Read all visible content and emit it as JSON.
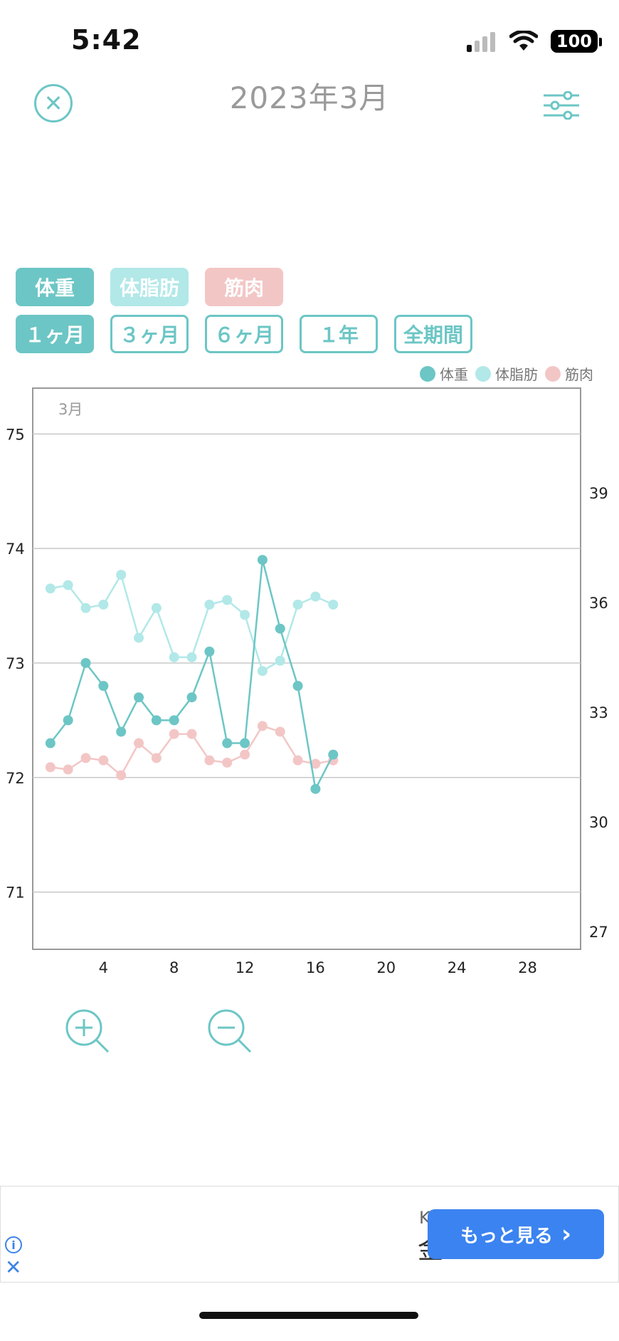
{
  "status": {
    "time": "5:42",
    "battery": "100"
  },
  "nav": {
    "title": "2023年3月",
    "close_icon": "close-circle-icon",
    "filter_icon": "sliders-icon"
  },
  "metric_tabs": [
    {
      "label": "体重",
      "state": "active",
      "color": "#6cc6c5"
    },
    {
      "label": "体脂肪",
      "state": "inactive",
      "color": "#b2e8e8"
    },
    {
      "label": "筋肉",
      "state": "inactive",
      "color": "#f3c6c6"
    }
  ],
  "period_tabs": [
    {
      "label": "１ヶ月",
      "state": "active"
    },
    {
      "label": "３ヶ月",
      "state": "inactive"
    },
    {
      "label": "６ヶ月",
      "state": "inactive"
    },
    {
      "label": "１年",
      "state": "inactive"
    },
    {
      "label": "全期間",
      "state": "inactive"
    }
  ],
  "legend": [
    {
      "label": "体重",
      "color": "#6cc6c5"
    },
    {
      "label": "体脂肪",
      "color": "#b2e8e8"
    },
    {
      "label": "筋肉",
      "color": "#f3c6c6"
    }
  ],
  "chart_data": {
    "type": "line",
    "month_label": "3月",
    "x_ticks": [
      4,
      8,
      12,
      16,
      20,
      24,
      28
    ],
    "xlim": [
      0,
      31
    ],
    "left_axis": {
      "ticks": [
        71,
        72,
        73,
        74,
        75
      ],
      "ylim": [
        70.5,
        75.4
      ]
    },
    "right_axis": {
      "ticks": [
        27,
        30,
        33,
        36,
        39
      ]
    },
    "series": [
      {
        "name": "体重",
        "color": "#6cc6c5",
        "x": [
          1,
          2,
          3,
          4,
          5,
          6,
          7,
          8,
          9,
          10,
          11,
          12,
          13,
          14,
          15,
          16,
          17
        ],
        "y": [
          72.3,
          72.5,
          73.0,
          72.8,
          72.4,
          72.7,
          72.5,
          72.5,
          72.7,
          73.1,
          72.3,
          72.3,
          73.9,
          73.3,
          72.8,
          71.9,
          72.2
        ]
      },
      {
        "name": "体脂肪",
        "color": "#b2e8e8",
        "x": [
          1,
          2,
          3,
          4,
          5,
          6,
          7,
          8,
          9,
          10,
          11,
          12,
          13,
          14,
          15,
          16,
          17
        ],
        "y": [
          73.65,
          73.68,
          73.48,
          73.51,
          73.77,
          73.22,
          73.48,
          73.05,
          73.05,
          73.51,
          73.55,
          73.42,
          72.93,
          73.02,
          73.51,
          73.58,
          73.51
        ]
      },
      {
        "name": "筋肉",
        "color": "#f3c6c6",
        "x": [
          1,
          2,
          3,
          4,
          5,
          6,
          7,
          8,
          9,
          10,
          11,
          12,
          13,
          14,
          15,
          16,
          17
        ],
        "y": [
          72.09,
          72.07,
          72.17,
          72.15,
          72.02,
          72.3,
          72.17,
          72.38,
          72.38,
          72.15,
          72.13,
          72.2,
          72.45,
          72.4,
          72.15,
          72.12,
          72.15
        ]
      }
    ]
  },
  "zoom": {
    "in_icon": "zoom-in-icon",
    "out_icon": "zoom-out-icon"
  },
  "ad": {
    "letter_top": "K",
    "letter_bottom": "金",
    "button_label": "もっと見る",
    "button_chevron": "›"
  }
}
